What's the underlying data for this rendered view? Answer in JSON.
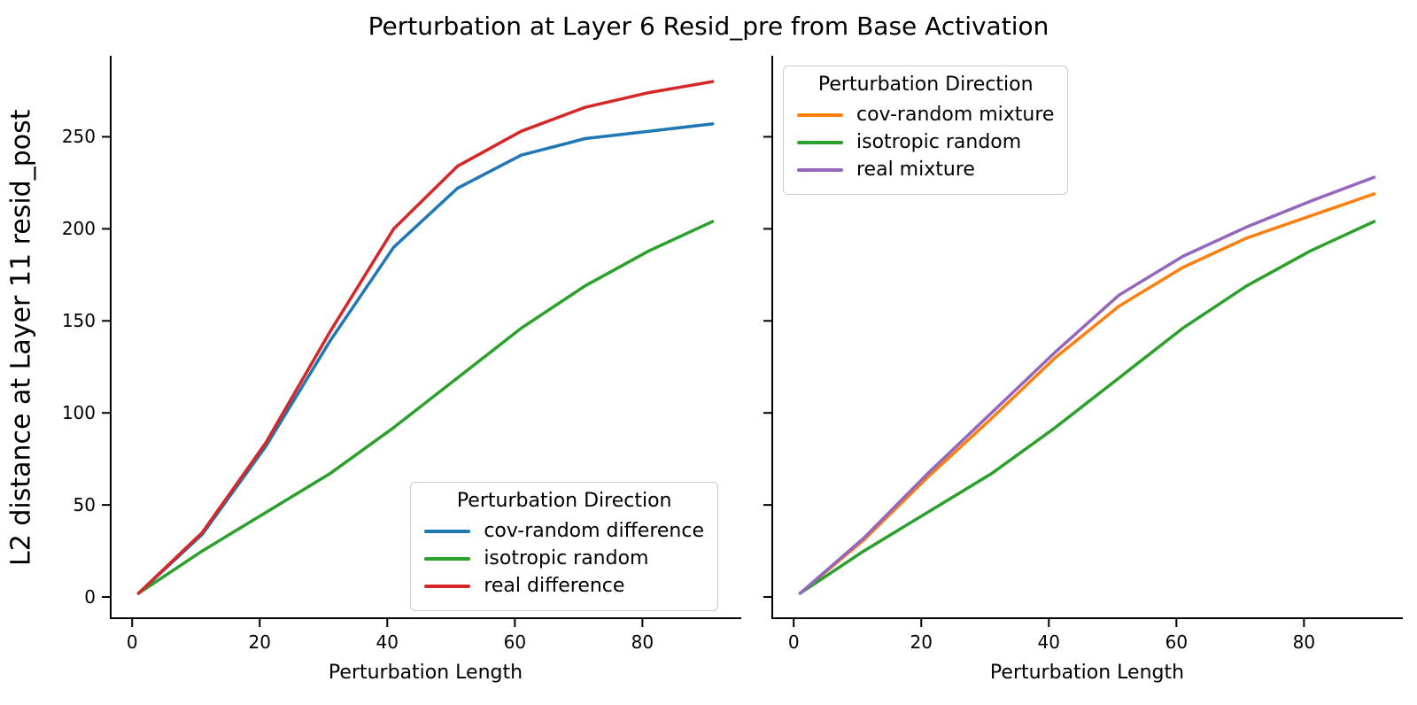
{
  "figure": {
    "title": "Perturbation at Layer 6 Resid_pre from Base Activation",
    "background": "#ffffff",
    "text_color": "#000000",
    "spine_color": "#000000"
  },
  "chart_data": [
    {
      "type": "line",
      "panel": "left",
      "xlabel": "Perturbation Length",
      "ylabel": "L2 distance at Layer 11 resid_post",
      "xlim": [
        -3.5,
        95.5
      ],
      "ylim": [
        -12,
        294
      ],
      "xticks": [
        0,
        20,
        40,
        60,
        80
      ],
      "yticks": [
        0,
        50,
        100,
        150,
        200,
        250
      ],
      "show_yticklabels": true,
      "grid": false,
      "legend": {
        "title": "Perturbation Direction",
        "position": "lower-right"
      },
      "x": [
        1,
        11,
        21,
        31,
        41,
        51,
        61,
        71,
        81,
        91
      ],
      "series": [
        {
          "name": "cov-random difference",
          "color": "#1f77b4",
          "values": [
            2,
            34,
            82,
            139,
            190,
            222,
            240,
            249,
            253,
            257
          ]
        },
        {
          "name": "isotropic random",
          "color": "#2ca02c",
          "values": [
            2,
            25,
            46,
            67,
            92,
            119,
            146,
            169,
            188,
            204
          ]
        },
        {
          "name": "real difference",
          "color": "#d62728",
          "values": [
            2,
            35,
            84,
            144,
            200,
            234,
            253,
            266,
            274,
            280
          ]
        }
      ]
    },
    {
      "type": "line",
      "panel": "right",
      "xlabel": "Perturbation Length",
      "ylabel": "",
      "xlim": [
        -3.5,
        95.5
      ],
      "ylim": [
        -12,
        294
      ],
      "xticks": [
        0,
        20,
        40,
        60,
        80
      ],
      "yticks": [
        0,
        50,
        100,
        150,
        200,
        250
      ],
      "show_yticklabels": false,
      "grid": false,
      "legend": {
        "title": "Perturbation Direction",
        "position": "upper-left"
      },
      "x": [
        1,
        11,
        21,
        31,
        41,
        51,
        61,
        71,
        81,
        91
      ],
      "series": [
        {
          "name": "cov-random mixture",
          "color": "#ff7f0e",
          "values": [
            2,
            31,
            65,
            97,
            130,
            158,
            179,
            195,
            207,
            219
          ]
        },
        {
          "name": "isotropic random",
          "color": "#2ca02c",
          "values": [
            2,
            25,
            46,
            67,
            92,
            119,
            146,
            169,
            188,
            204
          ]
        },
        {
          "name": "real mixture",
          "color": "#9467bd",
          "values": [
            2,
            32,
            67,
            100,
            133,
            164,
            185,
            201,
            215,
            228
          ]
        }
      ]
    }
  ]
}
